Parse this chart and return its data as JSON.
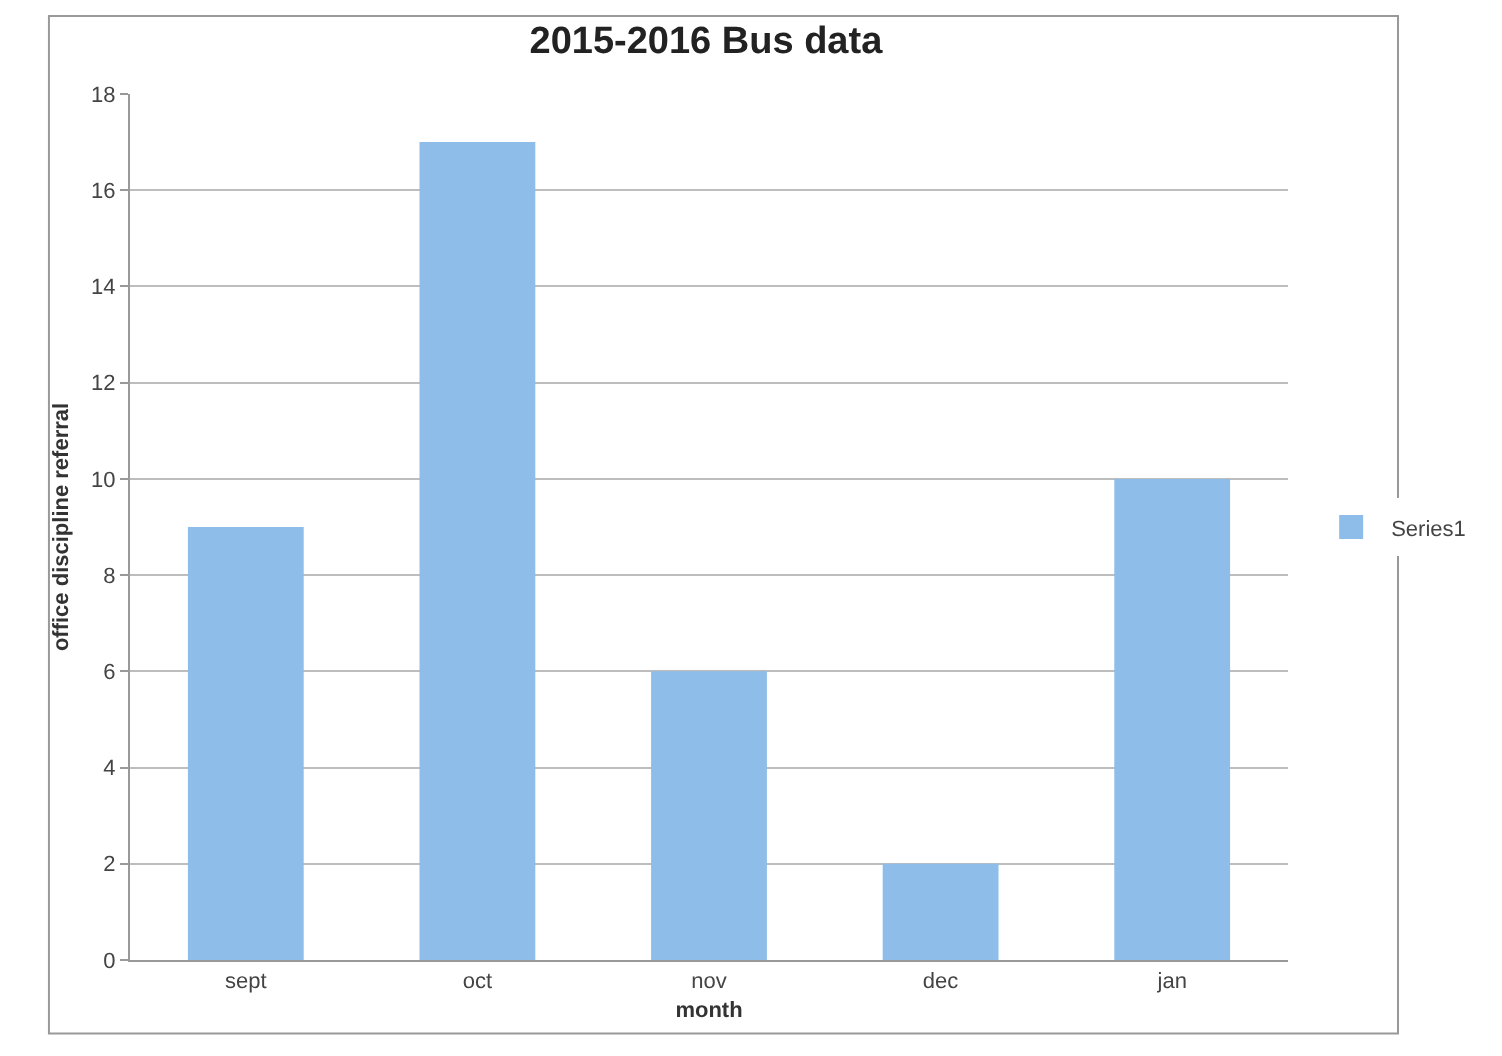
{
  "chart_data": {
    "type": "bar",
    "title": "2015-2016 Bus data",
    "xlabel": "month",
    "ylabel": "office discipline referral",
    "categories": [
      "sept",
      "oct",
      "nov",
      "dec",
      "jan"
    ],
    "series": [
      {
        "name": "Series1",
        "color": "#8dbde8",
        "values": [
          9,
          17,
          6,
          2,
          10
        ]
      }
    ],
    "ylim": [
      0,
      18
    ],
    "yticks": [
      0,
      2,
      4,
      6,
      8,
      10,
      12,
      14,
      16,
      18
    ],
    "grid": "y",
    "legend": "right"
  }
}
